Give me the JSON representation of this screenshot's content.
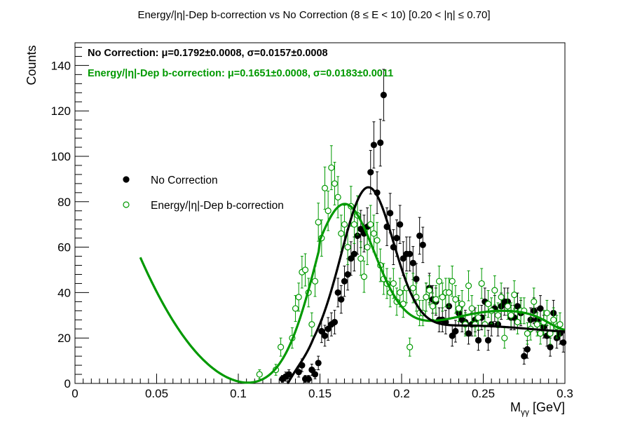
{
  "chart_data": {
    "type": "scatter",
    "title": "Energy/|η|-Dep b-correction vs No Correction   (8 ≤ E < 10)   [0.20 < |η| ≤ 0.70]",
    "xlabel": "M",
    "xlabel_sub": "γγ",
    "xlabel_unit": " [GeV]",
    "ylabel": "Counts",
    "xlim": [
      0,
      0.3
    ],
    "ylim": [
      0,
      150
    ],
    "x_ticks": [
      0,
      0.05,
      0.1,
      0.15,
      0.2,
      0.25,
      0.3
    ],
    "x_tick_labels": [
      "0",
      "0.05",
      "0.1",
      "0.15",
      "0.2",
      "0.25",
      "0.3"
    ],
    "y_ticks": [
      0,
      20,
      40,
      60,
      80,
      100,
      120,
      140
    ],
    "y_tick_labels": [
      "0",
      "20",
      "40",
      "60",
      "80",
      "100",
      "120",
      "140"
    ],
    "legend_placement": "middle-left",
    "stats": [
      {
        "text": "No Correction:  μ=0.1792±0.0008,  σ=0.0157±0.0008",
        "color": "#000000"
      },
      {
        "text": "Energy/|η|-Dep b-correction:  μ=0.1651±0.0008,  σ=0.0183±0.0011",
        "color": "#009900"
      }
    ],
    "series": [
      {
        "name": "No Correction",
        "color": "#000000",
        "marker": "filled-circle",
        "x": [
          0.127,
          0.129,
          0.131,
          0.137,
          0.139,
          0.141,
          0.143,
          0.145,
          0.147,
          0.149,
          0.151,
          0.153,
          0.155,
          0.157,
          0.159,
          0.161,
          0.163,
          0.165,
          0.167,
          0.169,
          0.171,
          0.173,
          0.175,
          0.177,
          0.179,
          0.181,
          0.183,
          0.185,
          0.187,
          0.189,
          0.191,
          0.193,
          0.195,
          0.197,
          0.199,
          0.201,
          0.203,
          0.205,
          0.207,
          0.209,
          0.211,
          0.213,
          0.215,
          0.217,
          0.219,
          0.221,
          0.223,
          0.225,
          0.227,
          0.229,
          0.231,
          0.233,
          0.235,
          0.237,
          0.239,
          0.241,
          0.243,
          0.245,
          0.247,
          0.249,
          0.251,
          0.253,
          0.255,
          0.257,
          0.259,
          0.261,
          0.263,
          0.265,
          0.267,
          0.269,
          0.271,
          0.273,
          0.275,
          0.277,
          0.279,
          0.281,
          0.283,
          0.285,
          0.287,
          0.289,
          0.291,
          0.293,
          0.295,
          0.297,
          0.299
        ],
        "y": [
          2,
          3,
          4,
          5,
          8,
          2,
          2,
          6,
          4,
          9,
          23,
          21,
          24,
          26,
          27,
          40,
          37,
          45,
          48,
          55,
          57,
          65,
          68,
          66,
          69,
          93,
          105,
          84,
          106,
          127,
          69,
          75,
          60,
          64,
          70,
          55,
          57,
          57,
          53,
          46,
          65,
          61,
          38,
          42,
          37,
          36,
          28,
          28,
          27,
          34,
          21,
          23,
          31,
          28,
          27,
          22,
          26,
          28,
          19,
          29,
          36,
          19,
          26,
          33,
          26,
          34,
          36,
          36,
          29,
          29,
          34,
          31,
          12,
          15,
          28,
          32,
          28,
          33,
          25,
          21,
          16,
          31,
          20,
          22,
          18
        ],
        "err": [
          1.5,
          2,
          2,
          2.2,
          2.8,
          1.5,
          1.5,
          2.5,
          2,
          3,
          5,
          4.6,
          5,
          5.1,
          5.2,
          6.3,
          6.1,
          6.7,
          6.9,
          7.4,
          7.5,
          8.1,
          8.2,
          8.1,
          8.3,
          9.6,
          10.2,
          9.2,
          10.3,
          11.3,
          8.3,
          8.7,
          7.7,
          8,
          8.4,
          7.4,
          7.5,
          7.5,
          7.3,
          6.8,
          8.1,
          7.8,
          6.2,
          6.5,
          6.1,
          6,
          5.3,
          5.3,
          5.2,
          5.8,
          4.6,
          4.8,
          5.6,
          5.3,
          5.2,
          4.7,
          5.1,
          5.3,
          4.4,
          5.4,
          6,
          4.4,
          5.1,
          5.7,
          5.1,
          5.8,
          6,
          6,
          5.4,
          5.4,
          5.8,
          5.6,
          3.5,
          3.9,
          5.3,
          5.7,
          5.3,
          5.7,
          5,
          4.6,
          4,
          5.6,
          4.5,
          4.7,
          4.2
        ]
      },
      {
        "name": "Energy/|η|-Dep b-correction",
        "color": "#009900",
        "marker": "open-circle",
        "x": [
          0.113,
          0.123,
          0.126,
          0.133,
          0.135,
          0.137,
          0.139,
          0.141,
          0.143,
          0.145,
          0.147,
          0.149,
          0.151,
          0.153,
          0.155,
          0.157,
          0.159,
          0.161,
          0.163,
          0.165,
          0.167,
          0.169,
          0.171,
          0.173,
          0.175,
          0.177,
          0.179,
          0.181,
          0.183,
          0.185,
          0.187,
          0.189,
          0.191,
          0.193,
          0.195,
          0.197,
          0.199,
          0.201,
          0.203,
          0.205,
          0.207,
          0.209,
          0.211,
          0.213,
          0.215,
          0.217,
          0.219,
          0.221,
          0.223,
          0.225,
          0.227,
          0.229,
          0.231,
          0.233,
          0.235,
          0.237,
          0.239,
          0.241,
          0.243,
          0.245,
          0.247,
          0.249,
          0.251,
          0.253,
          0.255,
          0.257,
          0.259,
          0.261,
          0.263,
          0.265,
          0.267,
          0.269,
          0.271,
          0.273,
          0.275,
          0.277,
          0.279,
          0.281,
          0.283,
          0.285,
          0.287,
          0.289,
          0.291,
          0.293,
          0.295,
          0.297
        ],
        "y": [
          4,
          6,
          16,
          20,
          33,
          38,
          49,
          50,
          40,
          26,
          45,
          71,
          64,
          86,
          76,
          95,
          88,
          82,
          66,
          70,
          60,
          78,
          70,
          74,
          55,
          47,
          60,
          70,
          66,
          63,
          52,
          46,
          44,
          40,
          44,
          36,
          40,
          35,
          42,
          16,
          42,
          38,
          31,
          31,
          38,
          41,
          34,
          37,
          45,
          38,
          40,
          40,
          45,
          37,
          33,
          35,
          26,
          43,
          33,
          26,
          29,
          44,
          26,
          35,
          32,
          41,
          30,
          38,
          20,
          34,
          30,
          39,
          27,
          32,
          32,
          22,
          24,
          36,
          26,
          22,
          27,
          31,
          22,
          28,
          25,
          26
        ],
        "err": [
          2,
          2.4,
          4,
          4.5,
          5.7,
          6.2,
          7,
          7.1,
          6.3,
          5.1,
          6.7,
          8.4,
          8,
          9.3,
          8.7,
          9.7,
          9.4,
          9.1,
          8.1,
          8.4,
          7.7,
          8.8,
          8.4,
          8.6,
          7.4,
          6.9,
          7.7,
          8.4,
          8.1,
          7.9,
          7.2,
          6.8,
          6.6,
          6.3,
          6.6,
          6,
          6.3,
          5.9,
          6.5,
          4,
          6.5,
          6.2,
          5.6,
          5.6,
          6.2,
          6.4,
          5.8,
          6.1,
          6.7,
          6.2,
          6.3,
          6.3,
          6.7,
          6.1,
          5.7,
          5.9,
          5.1,
          6.6,
          5.7,
          5.1,
          5.4,
          6.6,
          5.1,
          5.9,
          5.7,
          6.4,
          5.5,
          6.2,
          4.5,
          5.8,
          5.5,
          6.2,
          5.2,
          5.7,
          5.7,
          4.7,
          4.9,
          6,
          5.1,
          4.7,
          5.2,
          5.6,
          4.7,
          5.3,
          5,
          5.1
        ]
      }
    ],
    "fits": [
      {
        "series": "No Correction",
        "color": "#000000",
        "mu": 0.1792,
        "sigma": 0.0157,
        "x_range": [
          0.13,
          0.3
        ]
      },
      {
        "series": "Energy/|η|-Dep b-correction",
        "color": "#009900",
        "mu": 0.1651,
        "sigma": 0.0183,
        "x_range": [
          0.04,
          0.3
        ]
      }
    ]
  }
}
